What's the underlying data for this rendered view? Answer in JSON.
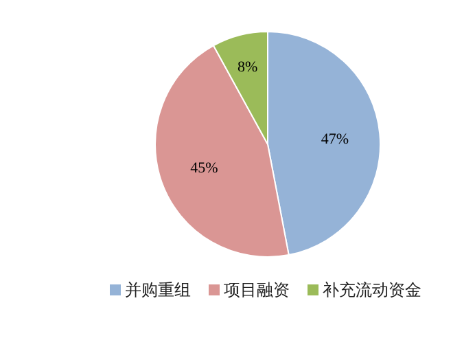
{
  "chart_data": {
    "type": "pie",
    "categories": [
      "并购重组",
      "项目融资",
      "补充流动资金"
    ],
    "values": [
      47,
      45,
      8
    ],
    "colors": [
      "#95b3d7",
      "#da9694",
      "#9bbb59"
    ],
    "value_labels": [
      "47%",
      "45%",
      "8%"
    ],
    "legend": "bottom"
  }
}
